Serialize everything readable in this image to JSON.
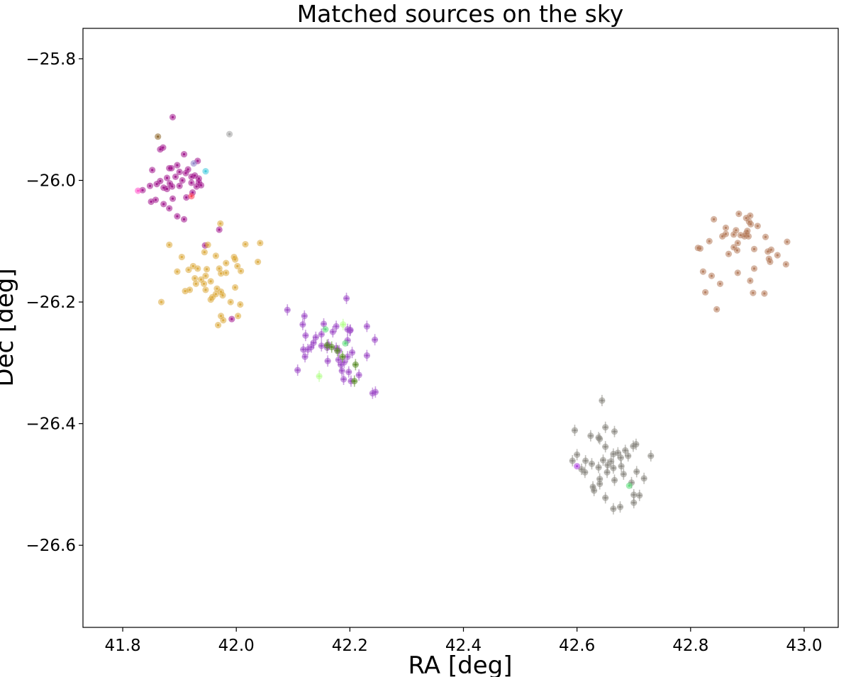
{
  "chart_data": {
    "type": "scatter",
    "title": "Matched sources on the sky",
    "xlabel": "RA [deg]",
    "ylabel": "Dec [deg]",
    "xlim": [
      41.73,
      43.06
    ],
    "ylim": [
      -26.735,
      -25.75
    ],
    "xticks": [
      41.8,
      42.0,
      42.2,
      42.4,
      42.6,
      42.8,
      43.0
    ],
    "xtick_labels": [
      "41.8",
      "42.0",
      "42.2",
      "42.4",
      "42.6",
      "42.8",
      "43.0"
    ],
    "yticks": [
      -25.8,
      -26.0,
      -26.2,
      -26.4,
      -26.6
    ],
    "ytick_labels": [
      "−25.8",
      "−26.0",
      "−26.2",
      "−26.4",
      "−26.6"
    ],
    "grid": false,
    "legend": "none",
    "series": [
      {
        "color": "#a0148c",
        "points": [
          [
            41.888,
            -25.896
          ],
          [
            41.871,
            -25.946
          ],
          [
            41.908,
            -25.957
          ],
          [
            41.932,
            -25.968
          ],
          [
            41.896,
            -25.975
          ],
          [
            41.882,
            -25.98
          ],
          [
            41.886,
            -25.98
          ],
          [
            41.9,
            -25.986
          ],
          [
            41.911,
            -25.988
          ],
          [
            41.927,
            -25.992
          ],
          [
            41.915,
            -25.982
          ],
          [
            41.893,
            -25.994
          ],
          [
            41.878,
            -25.996
          ],
          [
            41.866,
            -26.001
          ],
          [
            41.883,
            -26.005
          ],
          [
            41.905,
            -26.0
          ],
          [
            41.921,
            -25.994
          ],
          [
            41.934,
            -25.997
          ],
          [
            41.938,
            -26.008
          ],
          [
            41.93,
            -26.01
          ],
          [
            41.921,
            -26.004
          ],
          [
            41.9,
            -26.009
          ],
          [
            41.887,
            -26.01
          ],
          [
            41.872,
            -26.012
          ],
          [
            41.86,
            -26.006
          ],
          [
            41.852,
            -25.983
          ],
          [
            41.848,
            -26.009
          ],
          [
            41.835,
            -26.016
          ],
          [
            41.878,
            -26.014
          ],
          [
            41.858,
            -26.032
          ],
          [
            41.85,
            -26.035
          ],
          [
            41.872,
            -26.039
          ],
          [
            41.882,
            -26.046
          ],
          [
            41.896,
            -26.059
          ],
          [
            41.908,
            -26.064
          ],
          [
            41.923,
            -26.02
          ],
          [
            41.888,
            -26.03
          ],
          [
            41.912,
            -26.028
          ],
          [
            41.945,
            -26.107
          ],
          [
            41.97,
            -26.081
          ],
          [
            41.992,
            -26.228
          ],
          [
            41.866,
            -25.949
          ],
          [
            41.934,
            -26.003
          ]
        ]
      },
      {
        "color": "#dcaa3c",
        "points": [
          [
            41.972,
            -26.071
          ],
          [
            41.882,
            -26.106
          ],
          [
            41.95,
            -26.106
          ],
          [
            42.016,
            -26.105
          ],
          [
            42.042,
            -26.103
          ],
          [
            41.944,
            -26.118
          ],
          [
            41.904,
            -26.126
          ],
          [
            41.964,
            -26.124
          ],
          [
            41.996,
            -26.126
          ],
          [
            41.998,
            -26.13
          ],
          [
            42.038,
            -26.134
          ],
          [
            41.982,
            -26.136
          ],
          [
            41.924,
            -26.141
          ],
          [
            42.002,
            -26.141
          ],
          [
            41.932,
            -26.145
          ],
          [
            41.948,
            -26.146
          ],
          [
            41.97,
            -26.145
          ],
          [
            41.916,
            -26.147
          ],
          [
            42.008,
            -26.149
          ],
          [
            41.896,
            -26.15
          ],
          [
            41.982,
            -26.152
          ],
          [
            41.973,
            -26.153
          ],
          [
            41.946,
            -26.157
          ],
          [
            41.927,
            -26.161
          ],
          [
            41.938,
            -26.163
          ],
          [
            41.929,
            -26.17
          ],
          [
            41.943,
            -26.17
          ],
          [
            41.955,
            -26.166
          ],
          [
            41.966,
            -26.178
          ],
          [
            41.998,
            -26.176
          ],
          [
            41.918,
            -26.18
          ],
          [
            41.946,
            -26.18
          ],
          [
            41.973,
            -26.183
          ],
          [
            41.964,
            -26.187
          ],
          [
            41.976,
            -26.189
          ],
          [
            41.958,
            -26.192
          ],
          [
            41.955,
            -26.196
          ],
          [
            41.868,
            -26.2
          ],
          [
            41.99,
            -26.2
          ],
          [
            42.007,
            -26.204
          ],
          [
            41.973,
            -26.223
          ],
          [
            42.003,
            -26.223
          ],
          [
            41.977,
            -26.23
          ],
          [
            41.968,
            -26.238
          ],
          [
            41.91,
            -26.182
          ]
        ]
      },
      {
        "color": "#a050c8",
        "err": true,
        "points": [
          [
            42.194,
            -26.194
          ],
          [
            42.09,
            -26.213
          ],
          [
            42.12,
            -26.223
          ],
          [
            42.154,
            -26.236
          ],
          [
            42.117,
            -26.237
          ],
          [
            42.176,
            -26.24
          ],
          [
            42.23,
            -26.24
          ],
          [
            42.196,
            -26.245
          ],
          [
            42.2,
            -26.247
          ],
          [
            42.17,
            -26.249
          ],
          [
            42.15,
            -26.253
          ],
          [
            42.122,
            -26.255
          ],
          [
            42.14,
            -26.258
          ],
          [
            42.136,
            -26.267
          ],
          [
            42.196,
            -26.263
          ],
          [
            42.244,
            -26.262
          ],
          [
            42.162,
            -26.27
          ],
          [
            42.176,
            -26.276
          ],
          [
            42.15,
            -26.272
          ],
          [
            42.132,
            -26.274
          ],
          [
            42.126,
            -26.278
          ],
          [
            42.118,
            -26.278
          ],
          [
            42.16,
            -26.275
          ],
          [
            42.181,
            -26.28
          ],
          [
            42.204,
            -26.283
          ],
          [
            42.121,
            -26.29
          ],
          [
            42.23,
            -26.288
          ],
          [
            42.18,
            -26.295
          ],
          [
            42.196,
            -26.29
          ],
          [
            42.161,
            -26.297
          ],
          [
            42.184,
            -26.303
          ],
          [
            42.19,
            -26.299
          ],
          [
            42.108,
            -26.312
          ],
          [
            42.186,
            -26.313
          ],
          [
            42.198,
            -26.315
          ],
          [
            42.216,
            -26.32
          ],
          [
            42.189,
            -26.327
          ],
          [
            42.202,
            -26.33
          ],
          [
            42.245,
            -26.348
          ],
          [
            42.24,
            -26.35
          ],
          [
            42.201,
            -26.246
          ]
        ]
      },
      {
        "color": "#b47a5a",
        "points": [
          [
            42.885,
            -26.055
          ],
          [
            42.905,
            -26.058
          ],
          [
            42.898,
            -26.062
          ],
          [
            42.841,
            -26.064
          ],
          [
            42.903,
            -26.068
          ],
          [
            42.906,
            -26.072
          ],
          [
            42.918,
            -26.075
          ],
          [
            42.862,
            -26.078
          ],
          [
            42.88,
            -26.082
          ],
          [
            42.9,
            -26.083
          ],
          [
            42.898,
            -26.087
          ],
          [
            42.862,
            -26.088
          ],
          [
            42.876,
            -26.089
          ],
          [
            42.856,
            -26.092
          ],
          [
            42.888,
            -26.09
          ],
          [
            42.902,
            -26.092
          ],
          [
            42.895,
            -26.092
          ],
          [
            42.932,
            -26.093
          ],
          [
            42.833,
            -26.1
          ],
          [
            42.97,
            -26.101
          ],
          [
            42.883,
            -26.103
          ],
          [
            42.876,
            -26.11
          ],
          [
            42.817,
            -26.112
          ],
          [
            42.813,
            -26.111
          ],
          [
            42.912,
            -26.113
          ],
          [
            42.942,
            -26.114
          ],
          [
            42.936,
            -26.117
          ],
          [
            42.867,
            -26.121
          ],
          [
            42.882,
            -26.115
          ],
          [
            42.953,
            -26.123
          ],
          [
            42.938,
            -26.129
          ],
          [
            42.94,
            -26.134
          ],
          [
            42.968,
            -26.138
          ],
          [
            42.912,
            -26.145
          ],
          [
            42.822,
            -26.15
          ],
          [
            42.883,
            -26.152
          ],
          [
            42.837,
            -26.157
          ],
          [
            42.905,
            -26.165
          ],
          [
            42.852,
            -26.17
          ],
          [
            42.826,
            -26.184
          ],
          [
            42.91,
            -26.185
          ],
          [
            42.93,
            -26.186
          ],
          [
            42.846,
            -26.212
          ]
        ]
      },
      {
        "color": "#8c8a84",
        "err": true,
        "points": [
          [
            42.644,
            -26.362
          ],
          [
            42.65,
            -26.406
          ],
          [
            42.596,
            -26.411
          ],
          [
            42.666,
            -26.413
          ],
          [
            42.64,
            -26.425
          ],
          [
            42.624,
            -26.42
          ],
          [
            42.638,
            -26.423
          ],
          [
            42.704,
            -26.434
          ],
          [
            42.699,
            -26.437
          ],
          [
            42.65,
            -26.438
          ],
          [
            42.685,
            -26.444
          ],
          [
            42.672,
            -26.448
          ],
          [
            42.664,
            -26.45
          ],
          [
            42.6,
            -26.451
          ],
          [
            42.73,
            -26.453
          ],
          [
            42.677,
            -26.456
          ],
          [
            42.69,
            -26.453
          ],
          [
            42.646,
            -26.46
          ],
          [
            42.592,
            -26.461
          ],
          [
            42.615,
            -26.461
          ],
          [
            42.66,
            -26.462
          ],
          [
            42.626,
            -26.466
          ],
          [
            42.654,
            -26.468
          ],
          [
            42.638,
            -26.472
          ],
          [
            42.678,
            -26.47
          ],
          [
            42.664,
            -26.473
          ],
          [
            42.608,
            -26.475
          ],
          [
            42.705,
            -26.479
          ],
          [
            42.653,
            -26.48
          ],
          [
            42.614,
            -26.48
          ],
          [
            42.682,
            -26.483
          ],
          [
            42.64,
            -26.491
          ],
          [
            42.718,
            -26.49
          ],
          [
            42.666,
            -26.493
          ],
          [
            42.64,
            -26.499
          ],
          [
            42.696,
            -26.497
          ],
          [
            42.628,
            -26.504
          ],
          [
            42.63,
            -26.51
          ],
          [
            42.7,
            -26.517
          ],
          [
            42.71,
            -26.518
          ],
          [
            42.65,
            -26.522
          ],
          [
            42.7,
            -26.53
          ],
          [
            42.676,
            -26.537
          ],
          [
            42.664,
            -26.54
          ]
        ]
      },
      {
        "color": "#5a8c28",
        "err": true,
        "points": [
          [
            42.168,
            -26.274
          ],
          [
            42.16,
            -26.271
          ],
          [
            42.178,
            -26.28
          ],
          [
            42.187,
            -26.29
          ],
          [
            42.21,
            -26.303
          ],
          [
            42.208,
            -26.33
          ]
        ]
      },
      {
        "color": "#b4ff8c",
        "err": true,
        "points": [
          [
            42.146,
            -26.322
          ],
          [
            42.188,
            -26.237
          ]
        ]
      },
      {
        "color": "#5adc78",
        "points": [
          [
            42.157,
            -26.245
          ],
          [
            42.192,
            -26.268
          ],
          [
            42.692,
            -26.502
          ]
        ]
      },
      {
        "color": "#ff50c8",
        "points": [
          [
            41.827,
            -26.017
          ]
        ]
      },
      {
        "color": "#ff3c50",
        "points": [
          [
            41.921,
            -26.026
          ]
        ]
      },
      {
        "color": "#3cc8dc",
        "points": [
          [
            41.946,
            -25.985
          ]
        ]
      },
      {
        "color": "#8c82c8",
        "points": [
          [
            41.925,
            -25.972
          ]
        ]
      },
      {
        "color": "#8c6428",
        "points": [
          [
            41.862,
            -25.928
          ]
        ]
      },
      {
        "color": "#a0a0a0",
        "points": [
          [
            41.988,
            -25.924
          ]
        ]
      },
      {
        "color": "#aa3cdc",
        "points": [
          [
            42.6,
            -26.47
          ]
        ]
      }
    ]
  }
}
